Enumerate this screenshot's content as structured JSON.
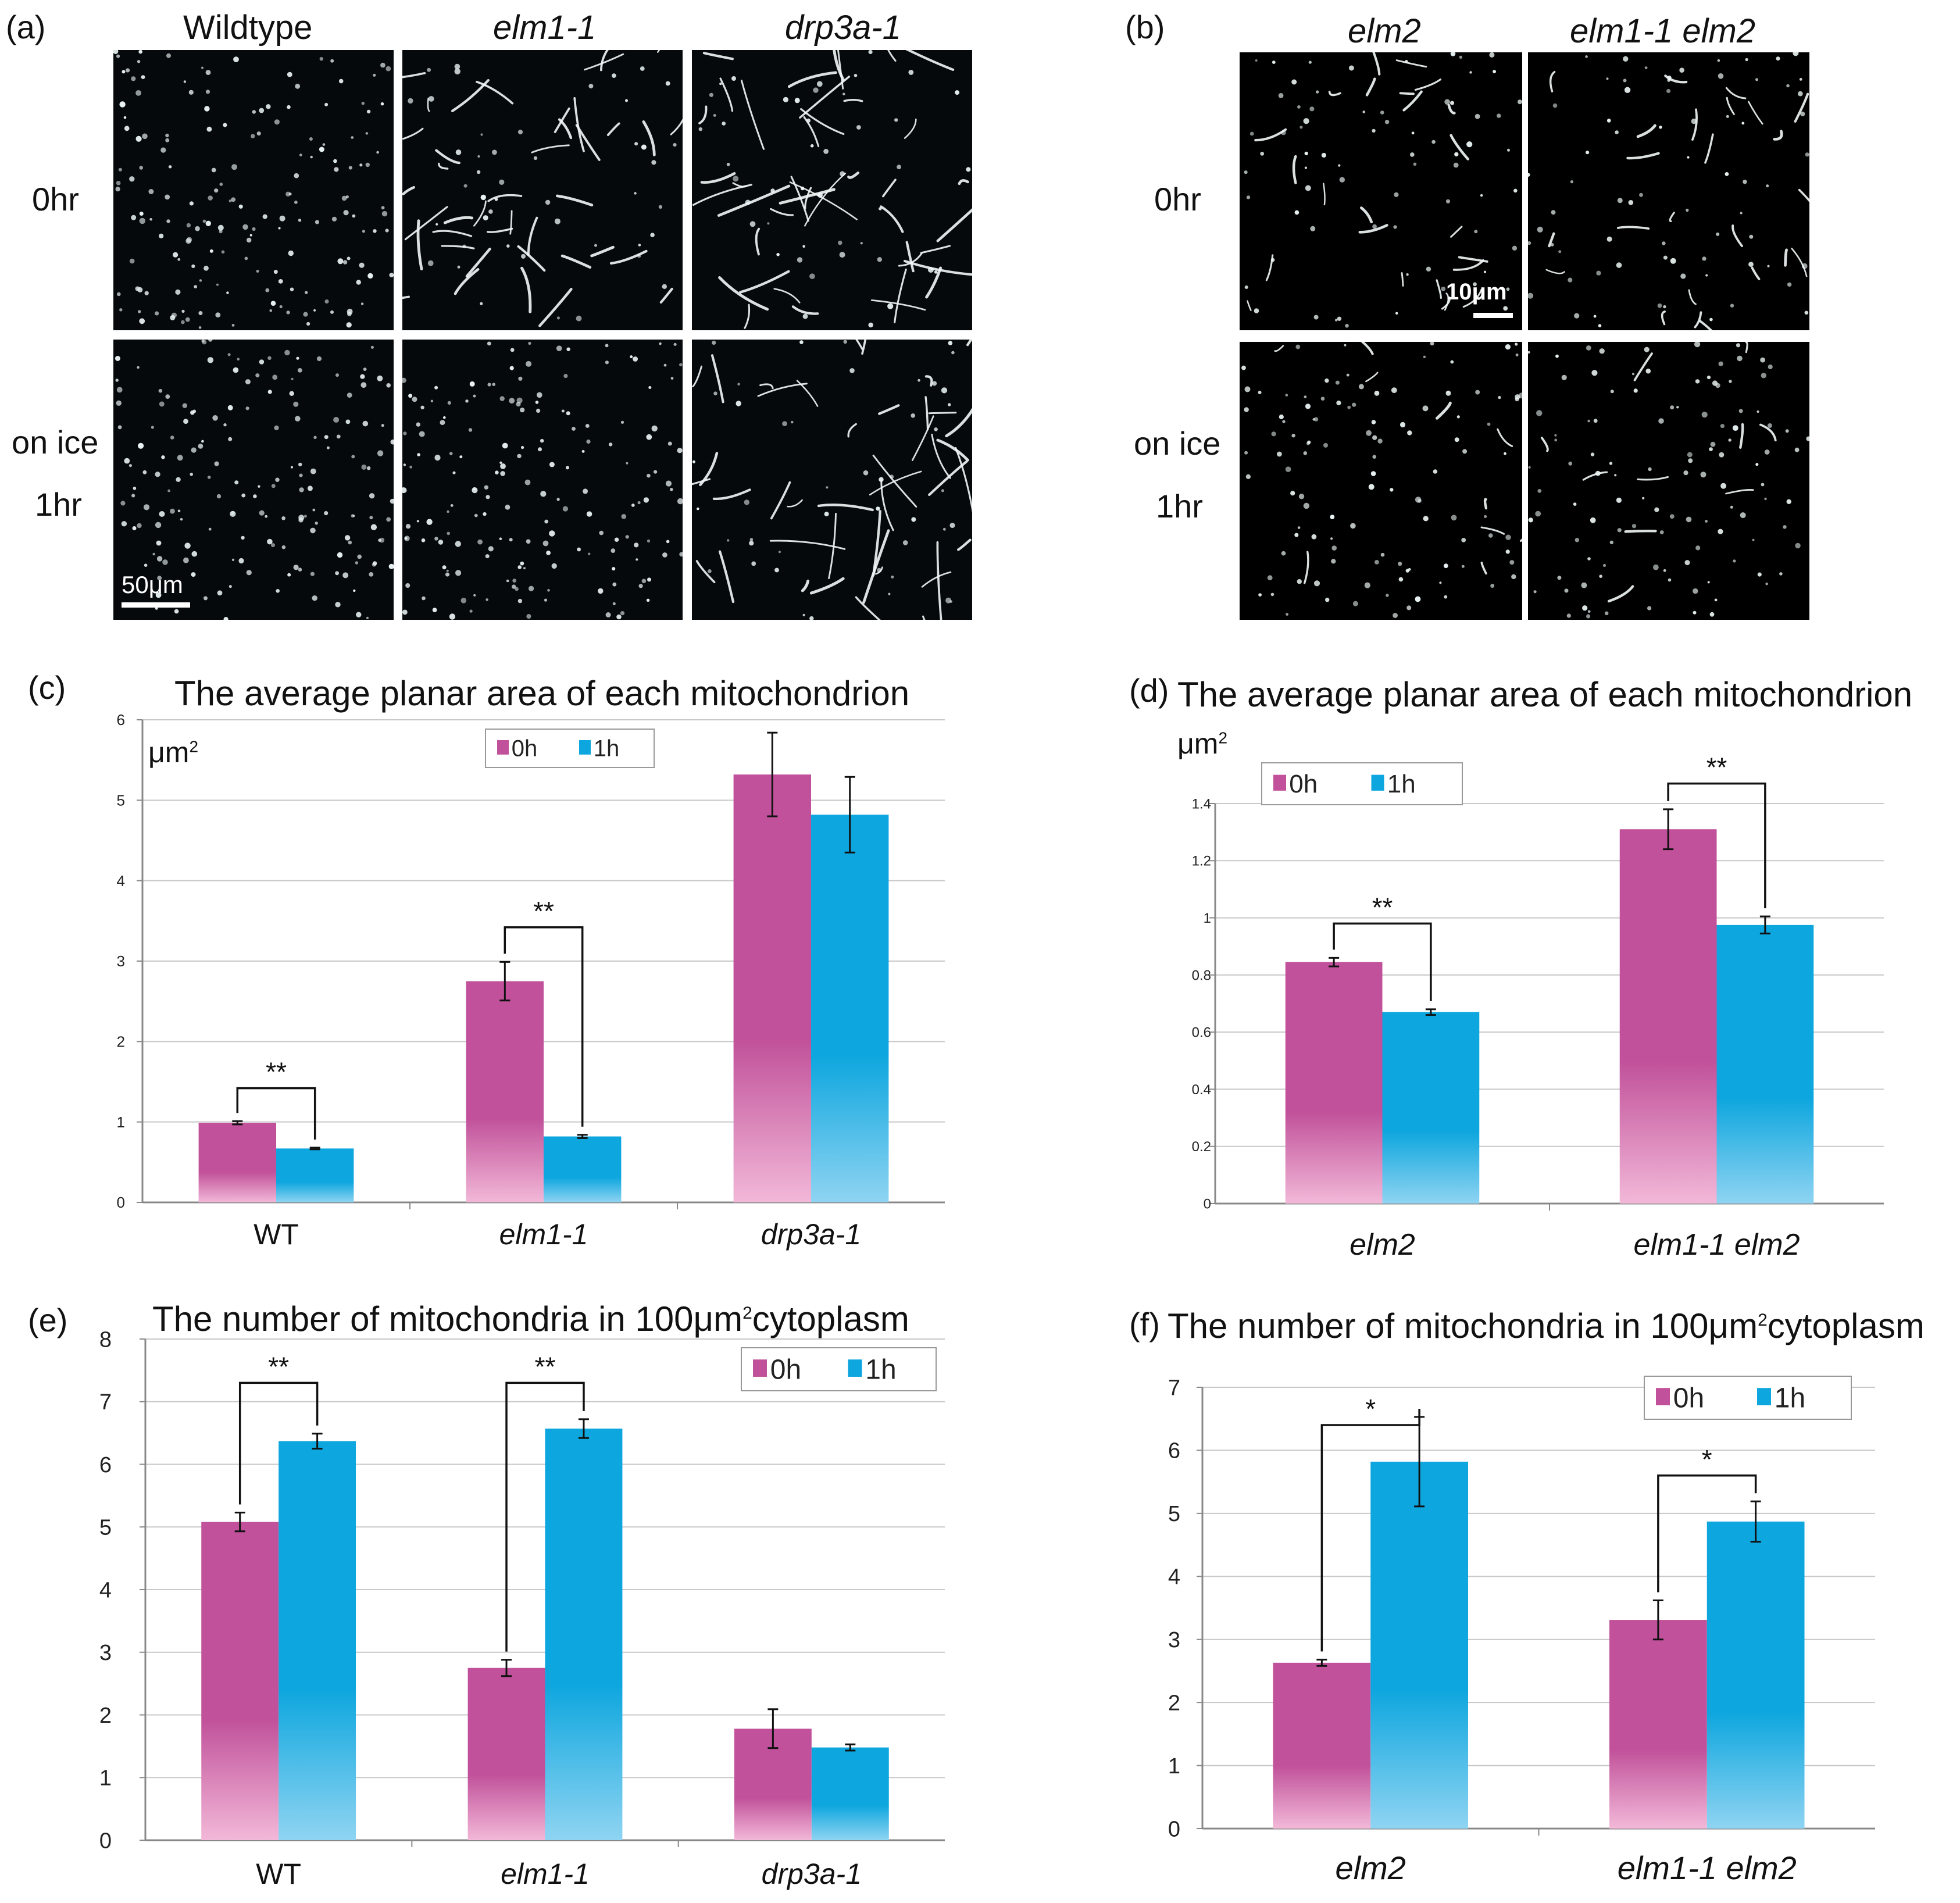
{
  "colors": {
    "zero_hour": "#c1519a",
    "one_hour": "#0da6de",
    "micro_bg": "#05090b",
    "grid": "#c8c8c8"
  },
  "panel_a": {
    "letter": "(a)",
    "columns": [
      "Wildtype",
      "elm1-1",
      "drp3a-1"
    ],
    "rows": [
      "0hr",
      "on ice",
      "1hr"
    ],
    "scale_label": "50μm"
  },
  "panel_b": {
    "letter": "(b)",
    "columns": [
      "elm2",
      "elm1-1 elm2"
    ],
    "rows": [
      "0hr",
      "on ice",
      "1hr"
    ],
    "scale_label": "10μm"
  },
  "chart_data": [
    {
      "id": "c",
      "letter": "(c)",
      "type": "bar",
      "title": "The average planar area of each mitochondrion",
      "ylabel": "μm",
      "ylabel_sup": "2",
      "categories": [
        "WT",
        "elm1-1",
        "drp3a-1"
      ],
      "categories_italic": [
        false,
        true,
        true
      ],
      "ylim": [
        0,
        6
      ],
      "yticks": [
        "0",
        "1",
        "2",
        "3",
        "4",
        "5",
        "6"
      ],
      "series": [
        {
          "name": "0h",
          "values": [
            0.99,
            2.75,
            5.32
          ],
          "errors": [
            0.02,
            0.24,
            0.52
          ]
        },
        {
          "name": "1h",
          "values": [
            0.67,
            0.82,
            4.82
          ],
          "errors": [
            0.01,
            0.02,
            0.47
          ]
        }
      ],
      "significance": [
        {
          "category": 0,
          "label": "**",
          "top": 1.42
        },
        {
          "category": 1,
          "label": "**",
          "top": 3.42
        }
      ]
    },
    {
      "id": "d",
      "letter": "(d)",
      "type": "bar",
      "title": "The average planar area of each mitochondrion",
      "ylabel": "μm",
      "ylabel_sup": "2",
      "categories": [
        "elm2",
        "elm1-1 elm2"
      ],
      "categories_italic": [
        true,
        true
      ],
      "ylim": [
        0,
        1.4
      ],
      "yticks": [
        "0",
        "0.2",
        "0.4",
        "0.6",
        "0.8",
        "1",
        "1.2",
        "1.4"
      ],
      "series": [
        {
          "name": "0h",
          "values": [
            0.845,
            1.31
          ],
          "errors": [
            0.015,
            0.07
          ]
        },
        {
          "name": "1h",
          "values": [
            0.67,
            0.975
          ],
          "errors": [
            0.01,
            0.03
          ]
        }
      ],
      "significance": [
        {
          "category": 0,
          "label": "**",
          "top": 0.98
        },
        {
          "category": 1,
          "label": "**",
          "top": 1.47
        }
      ]
    },
    {
      "id": "e",
      "letter": "(e)",
      "type": "bar",
      "title": "The number of mitochondria in 100μm",
      "title_sup": "2",
      "title_tail": "cytoplasm",
      "categories": [
        "WT",
        "elm1-1",
        "drp3a-1"
      ],
      "categories_italic": [
        false,
        true,
        true
      ],
      "ylim": [
        0,
        8
      ],
      "yticks": [
        "0",
        "1",
        "2",
        "3",
        "4",
        "5",
        "6",
        "7",
        "8"
      ],
      "series": [
        {
          "name": "0h",
          "values": [
            5.08,
            2.75,
            1.78
          ],
          "errors": [
            0.15,
            0.13,
            0.31
          ]
        },
        {
          "name": "1h",
          "values": [
            6.37,
            6.57,
            1.48
          ],
          "errors": [
            0.12,
            0.15,
            0.05
          ]
        }
      ],
      "significance": [
        {
          "category": 0,
          "label": "**",
          "top": 7.3
        },
        {
          "category": 1,
          "label": "**",
          "top": 7.3
        }
      ]
    },
    {
      "id": "f",
      "letter": "(f)",
      "type": "bar",
      "title": "The number of mitochondria in 100μm",
      "title_sup": "2",
      "title_tail": "cytoplasm",
      "categories": [
        "elm2",
        "elm1-1 elm2"
      ],
      "categories_italic": [
        true,
        true
      ],
      "ylim": [
        0,
        7
      ],
      "yticks": [
        "0",
        "1",
        "2",
        "3",
        "4",
        "5",
        "6",
        "7"
      ],
      "series": [
        {
          "name": "0h",
          "values": [
            2.63,
            3.31
          ],
          "errors": [
            0.05,
            0.31
          ]
        },
        {
          "name": "1h",
          "values": [
            5.82,
            4.87
          ],
          "errors": [
            0.71,
            0.32
          ]
        }
      ],
      "significance": [
        {
          "category": 0,
          "label": "*",
          "top": 6.4
        },
        {
          "category": 1,
          "label": "*",
          "top": 5.6
        }
      ]
    }
  ]
}
